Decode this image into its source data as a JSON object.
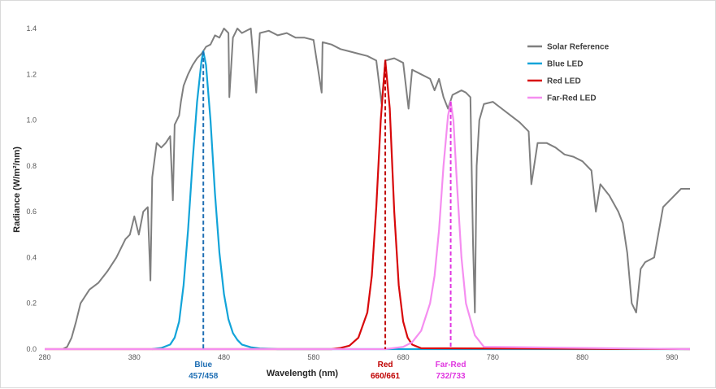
{
  "chart_data": {
    "type": "line",
    "title": "",
    "xlabel": "Wavelength (nm)",
    "ylabel": "Radiance (W/m²/nm)",
    "xlim": [
      280,
      1000
    ],
    "ylim": [
      0,
      1.4
    ],
    "x_ticks": [
      "280",
      "380",
      "480",
      "580",
      "680",
      "780",
      "880",
      "980"
    ],
    "y_ticks": [
      "0.0",
      "0.2",
      "0.4",
      "0.6",
      "0.8",
      "1.0",
      "1.2",
      "1.4"
    ],
    "grid": false,
    "legend_position": "top-right",
    "series": [
      {
        "name": "Solar Reference",
        "color": "#7f7f7f",
        "x": [
          280,
          300,
          305,
          310,
          315,
          320,
          330,
          340,
          350,
          360,
          370,
          375,
          380,
          385,
          390,
          395,
          398,
          400,
          405,
          410,
          415,
          420,
          423,
          425,
          430,
          432,
          435,
          440,
          445,
          450,
          455,
          460,
          465,
          470,
          475,
          480,
          485,
          486,
          490,
          495,
          500,
          510,
          516,
          520,
          530,
          540,
          550,
          560,
          570,
          580,
          589,
          590,
          600,
          610,
          620,
          630,
          640,
          650,
          656,
          660,
          670,
          680,
          686,
          690,
          700,
          710,
          715,
          720,
          725,
          730,
          735,
          740,
          745,
          750,
          755,
          758,
          760,
          762,
          765,
          770,
          780,
          790,
          800,
          810,
          820,
          823,
          830,
          840,
          850,
          860,
          870,
          880,
          890,
          895,
          900,
          910,
          920,
          925,
          930,
          935,
          940,
          945,
          950,
          960,
          970,
          980,
          990,
          1000
        ],
        "values": [
          0.0,
          0.0,
          0.01,
          0.05,
          0.12,
          0.2,
          0.26,
          0.29,
          0.34,
          0.4,
          0.48,
          0.5,
          0.58,
          0.5,
          0.6,
          0.62,
          0.3,
          0.75,
          0.9,
          0.88,
          0.9,
          0.93,
          0.65,
          0.98,
          1.02,
          1.08,
          1.15,
          1.2,
          1.24,
          1.27,
          1.29,
          1.32,
          1.33,
          1.37,
          1.36,
          1.4,
          1.38,
          1.1,
          1.36,
          1.4,
          1.38,
          1.4,
          1.12,
          1.38,
          1.39,
          1.37,
          1.38,
          1.36,
          1.36,
          1.35,
          1.12,
          1.34,
          1.33,
          1.31,
          1.3,
          1.29,
          1.28,
          1.26,
          1.07,
          1.26,
          1.27,
          1.25,
          1.05,
          1.22,
          1.2,
          1.18,
          1.13,
          1.18,
          1.1,
          1.05,
          1.11,
          1.12,
          1.13,
          1.12,
          1.1,
          0.45,
          0.16,
          0.8,
          1.0,
          1.07,
          1.08,
          1.05,
          1.02,
          0.99,
          0.95,
          0.72,
          0.9,
          0.9,
          0.88,
          0.85,
          0.84,
          0.82,
          0.78,
          0.6,
          0.72,
          0.67,
          0.6,
          0.55,
          0.42,
          0.2,
          0.16,
          0.35,
          0.38,
          0.4,
          0.62,
          0.66,
          0.7,
          0.7
        ]
      },
      {
        "name": "Blue LED",
        "color": "#12a4d9",
        "x": [
          400,
          410,
          420,
          425,
          430,
          435,
          440,
          445,
          450,
          455,
          457,
          460,
          465,
          470,
          475,
          480,
          485,
          490,
          495,
          500,
          510,
          520,
          540,
          1000
        ],
        "values": [
          0.0,
          0.005,
          0.02,
          0.05,
          0.12,
          0.28,
          0.52,
          0.82,
          1.08,
          1.26,
          1.3,
          1.24,
          1.0,
          0.68,
          0.42,
          0.24,
          0.13,
          0.07,
          0.04,
          0.02,
          0.008,
          0.003,
          0.0,
          0.0
        ]
      },
      {
        "name": "Red LED",
        "color": "#d8090b",
        "x": [
          280,
          600,
          610,
          620,
          630,
          640,
          645,
          650,
          655,
          660,
          665,
          670,
          675,
          680,
          685,
          690,
          700,
          1000
        ],
        "values": [
          0.0,
          0.0,
          0.005,
          0.015,
          0.05,
          0.16,
          0.32,
          0.62,
          1.0,
          1.26,
          1.05,
          0.6,
          0.28,
          0.12,
          0.05,
          0.02,
          0.004,
          0.0
        ]
      },
      {
        "name": "Far-Red LED",
        "color": "#f58ef0",
        "x": [
          280,
          660,
          680,
          690,
          700,
          710,
          715,
          720,
          725,
          730,
          733,
          736,
          740,
          745,
          750,
          760,
          770,
          1000
        ],
        "values": [
          0.0,
          0.0,
          0.01,
          0.03,
          0.08,
          0.2,
          0.32,
          0.52,
          0.8,
          1.02,
          1.08,
          1.0,
          0.72,
          0.4,
          0.2,
          0.06,
          0.01,
          0.0
        ]
      }
    ],
    "peak_markers": [
      {
        "x": 457,
        "y": 1.3,
        "label": "Blue",
        "value": "457/458",
        "color": "#1f6fb4"
      },
      {
        "x": 660,
        "y": 1.26,
        "label": "Red",
        "value": "660/661",
        "color": "#c00000"
      },
      {
        "x": 733,
        "y": 1.08,
        "label": "Far-Red",
        "value": "732/733",
        "color": "#e036e0"
      }
    ]
  }
}
